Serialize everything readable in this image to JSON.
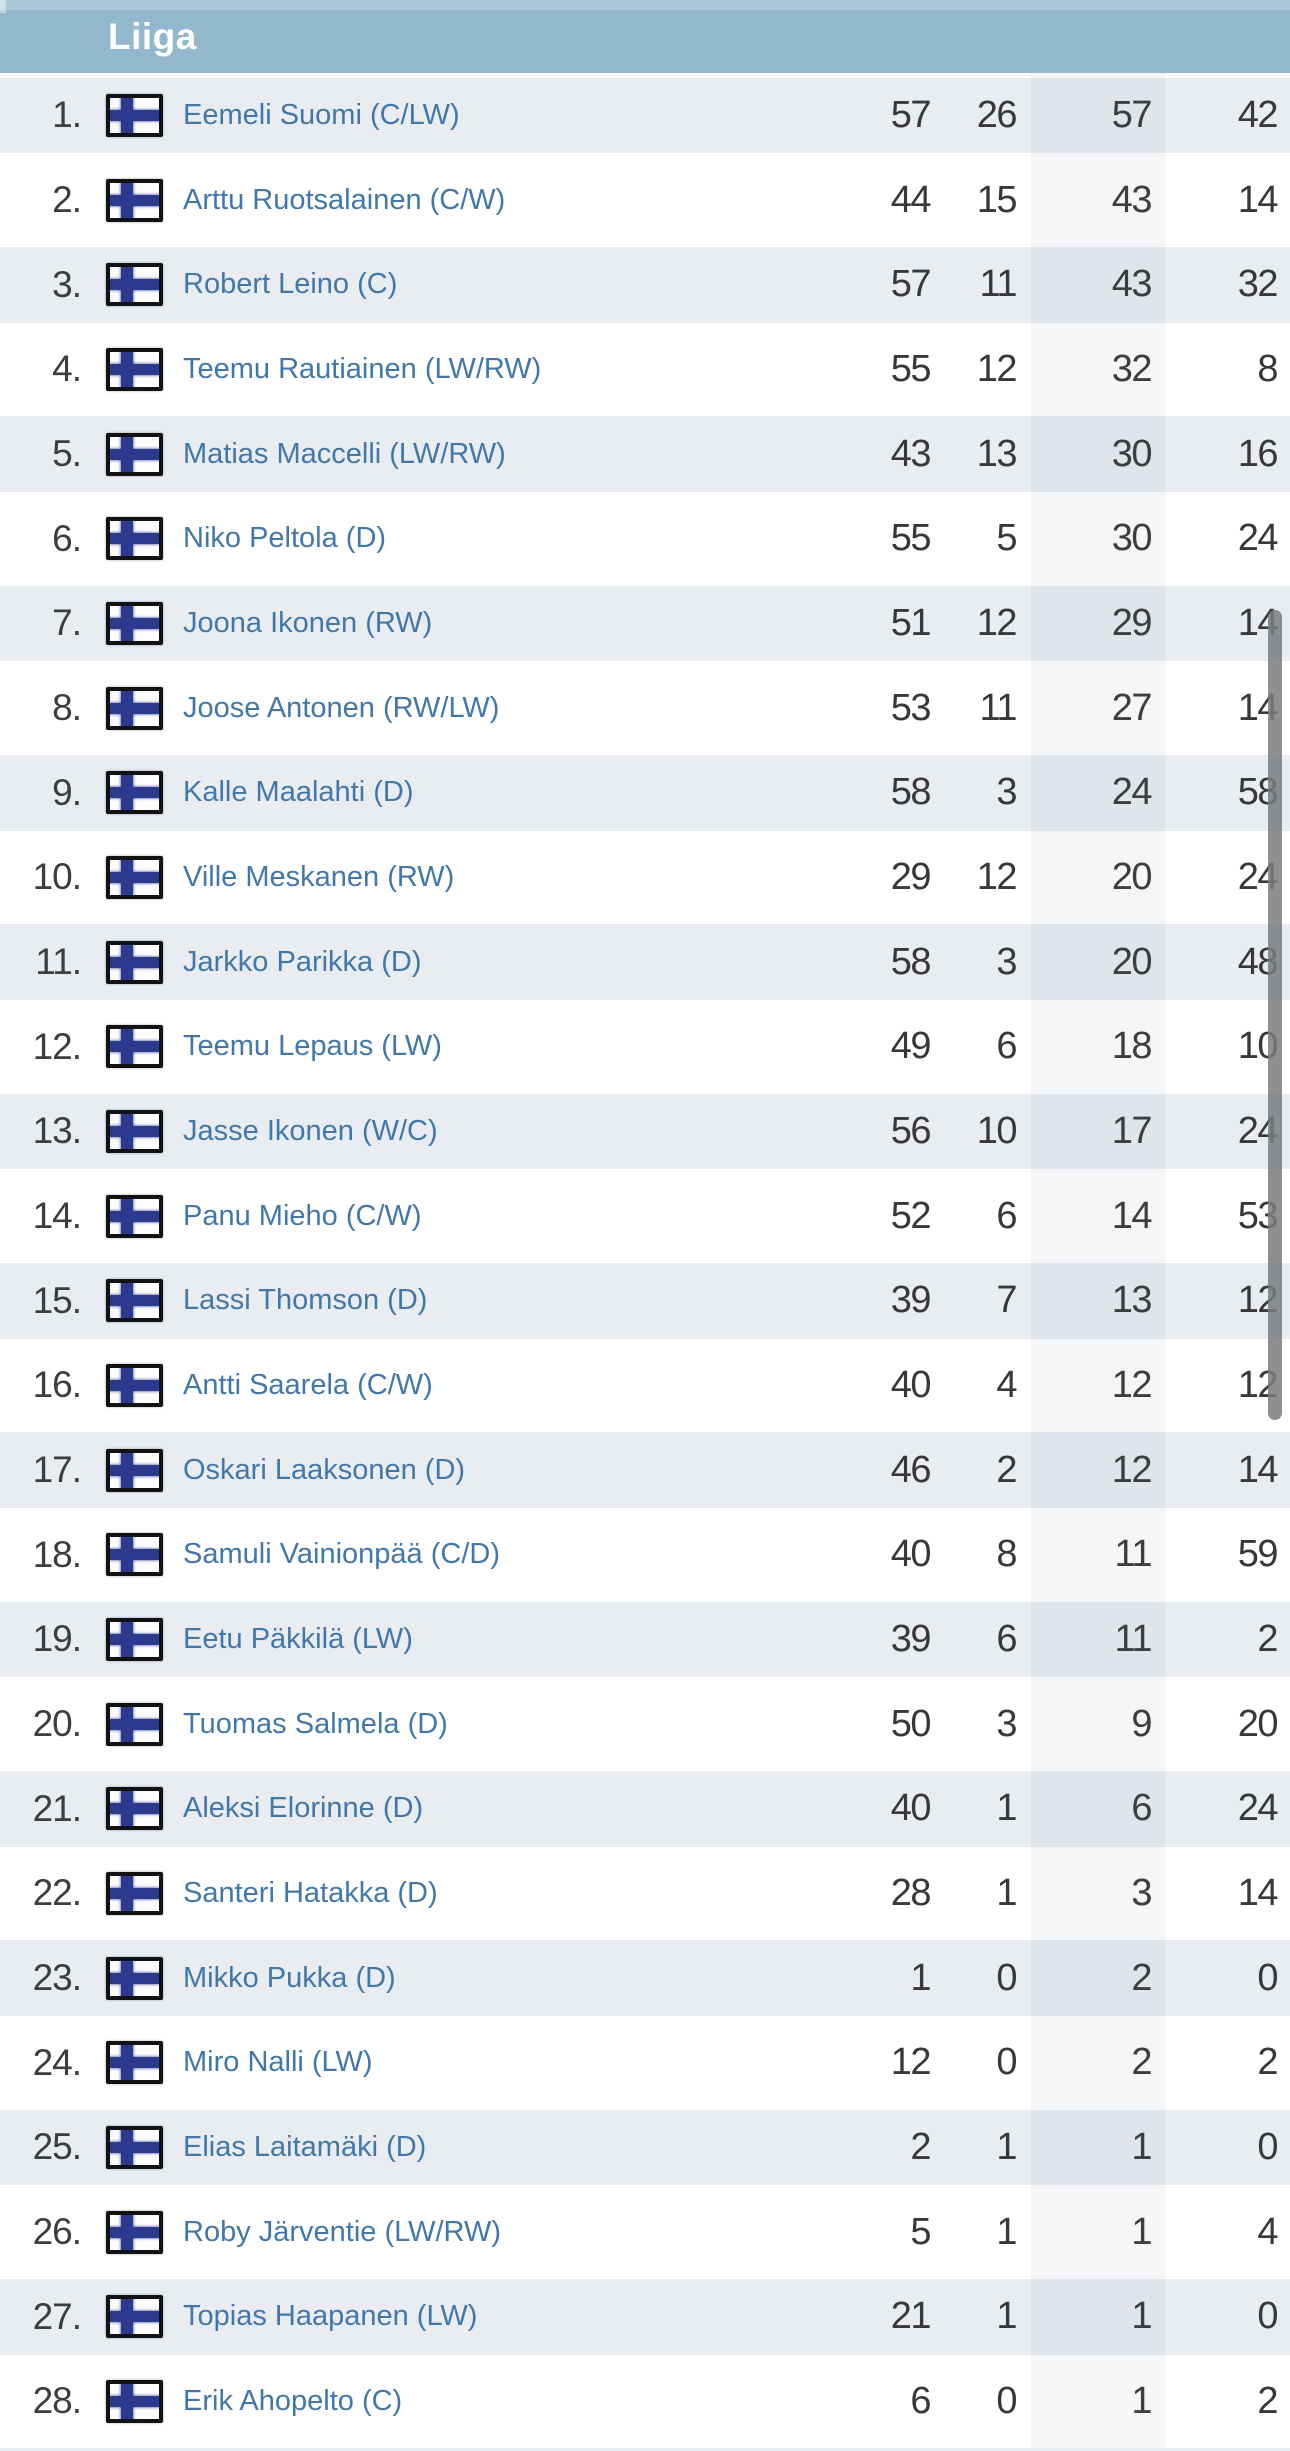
{
  "header": {
    "title": "Liiga"
  },
  "flag": {
    "country": "finland-flag"
  },
  "colors": {
    "header_bg": "#93b7cb",
    "row_alt_bg": "#e9edf2",
    "name_color": "#4277aa",
    "flag_cross": "#2c3a8e",
    "number_color": "#383838",
    "rank_color": "#3b3d3f"
  },
  "players": [
    {
      "rank": "1.",
      "name": "Eemeli Suomi (C/LW)",
      "stats": [
        "57",
        "26",
        "57",
        "42"
      ]
    },
    {
      "rank": "2.",
      "name": "Arttu Ruotsalainen (C/W)",
      "stats": [
        "44",
        "15",
        "43",
        "14"
      ]
    },
    {
      "rank": "3.",
      "name": "Robert Leino (C)",
      "stats": [
        "57",
        "11",
        "43",
        "32"
      ]
    },
    {
      "rank": "4.",
      "name": "Teemu Rautiainen (LW/RW)",
      "stats": [
        "55",
        "12",
        "32",
        "8"
      ]
    },
    {
      "rank": "5.",
      "name": "Matias Maccelli (LW/RW)",
      "stats": [
        "43",
        "13",
        "30",
        "16"
      ]
    },
    {
      "rank": "6.",
      "name": "Niko Peltola (D)",
      "stats": [
        "55",
        "5",
        "30",
        "24"
      ]
    },
    {
      "rank": "7.",
      "name": "Joona Ikonen (RW)",
      "stats": [
        "51",
        "12",
        "29",
        "14"
      ]
    },
    {
      "rank": "8.",
      "name": "Joose Antonen (RW/LW)",
      "stats": [
        "53",
        "11",
        "27",
        "14"
      ]
    },
    {
      "rank": "9.",
      "name": "Kalle Maalahti (D)",
      "stats": [
        "58",
        "3",
        "24",
        "58"
      ]
    },
    {
      "rank": "10.",
      "name": "Ville Meskanen (RW)",
      "stats": [
        "29",
        "12",
        "20",
        "24"
      ]
    },
    {
      "rank": "11.",
      "name": "Jarkko Parikka (D)",
      "stats": [
        "58",
        "3",
        "20",
        "48"
      ]
    },
    {
      "rank": "12.",
      "name": "Teemu Lepaus (LW)",
      "stats": [
        "49",
        "6",
        "18",
        "10"
      ]
    },
    {
      "rank": "13.",
      "name": "Jasse Ikonen (W/C)",
      "stats": [
        "56",
        "10",
        "17",
        "24"
      ]
    },
    {
      "rank": "14.",
      "name": "Panu Mieho (C/W)",
      "stats": [
        "52",
        "6",
        "14",
        "53"
      ]
    },
    {
      "rank": "15.",
      "name": "Lassi Thomson (D)",
      "stats": [
        "39",
        "7",
        "13",
        "12"
      ]
    },
    {
      "rank": "16.",
      "name": "Antti Saarela (C/W)",
      "stats": [
        "40",
        "4",
        "12",
        "12"
      ]
    },
    {
      "rank": "17.",
      "name": "Oskari Laaksonen (D)",
      "stats": [
        "46",
        "2",
        "12",
        "14"
      ]
    },
    {
      "rank": "18.",
      "name": "Samuli Vainionpää (C/D)",
      "stats": [
        "40",
        "8",
        "11",
        "59"
      ]
    },
    {
      "rank": "19.",
      "name": "Eetu Päkkilä (LW)",
      "stats": [
        "39",
        "6",
        "11",
        "2"
      ]
    },
    {
      "rank": "20.",
      "name": "Tuomas Salmela (D)",
      "stats": [
        "50",
        "3",
        "9",
        "20"
      ]
    },
    {
      "rank": "21.",
      "name": "Aleksi Elorinne (D)",
      "stats": [
        "40",
        "1",
        "6",
        "24"
      ]
    },
    {
      "rank": "22.",
      "name": "Santeri Hatakka (D)",
      "stats": [
        "28",
        "1",
        "3",
        "14"
      ]
    },
    {
      "rank": "23.",
      "name": "Mikko Pukka (D)",
      "stats": [
        "1",
        "0",
        "2",
        "0"
      ]
    },
    {
      "rank": "24.",
      "name": "Miro Nalli (LW)",
      "stats": [
        "12",
        "0",
        "2",
        "2"
      ]
    },
    {
      "rank": "25.",
      "name": "Elias Laitamäki (D)",
      "stats": [
        "2",
        "1",
        "1",
        "0"
      ]
    },
    {
      "rank": "26.",
      "name": "Roby Järventie (LW/RW)",
      "stats": [
        "5",
        "1",
        "1",
        "4"
      ]
    },
    {
      "rank": "27.",
      "name": "Topias Haapanen (LW)",
      "stats": [
        "21",
        "1",
        "1",
        "0"
      ]
    },
    {
      "rank": "28.",
      "name": "Erik Ahopelto (C)",
      "stats": [
        "6",
        "0",
        "1",
        "2"
      ]
    }
  ]
}
